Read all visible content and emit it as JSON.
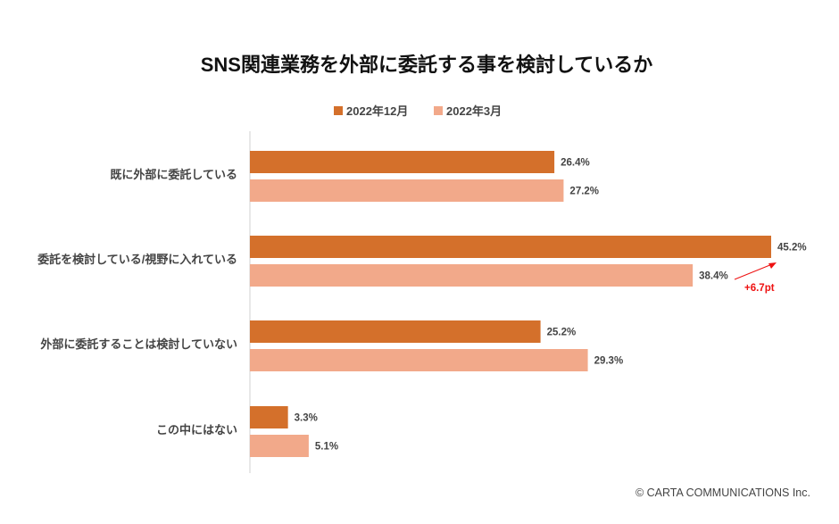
{
  "chart_data": {
    "type": "bar",
    "orientation": "horizontal",
    "title": "SNS関連業務を外部に委託する事を検討しているか",
    "categories": [
      "既に外部に委託している",
      "委託を検討している/視野に入れている",
      "外部に委託することは検討していない",
      "この中にはない"
    ],
    "series": [
      {
        "name": "2022年12月",
        "color": "#D4702B",
        "values": [
          26.4,
          45.2,
          25.2,
          3.3
        ],
        "labels": [
          "26.4%",
          "45.2%",
          "25.2%",
          "3.3%"
        ]
      },
      {
        "name": "2022年3月",
        "color": "#F2A98A",
        "values": [
          27.2,
          38.4,
          29.3,
          5.1
        ],
        "labels": [
          "27.2%",
          "38.4%",
          "29.3%",
          "5.1%"
        ]
      }
    ],
    "xlim": [
      0,
      45.2
    ],
    "legend_position": "top",
    "annotation": {
      "text": "+6.7pt",
      "category": "委託を検討している/視野に入れている",
      "color": "#EE1111"
    },
    "grid": false
  },
  "footer": {
    "copyright": "© CARTA COMMUNICATIONS Inc."
  }
}
